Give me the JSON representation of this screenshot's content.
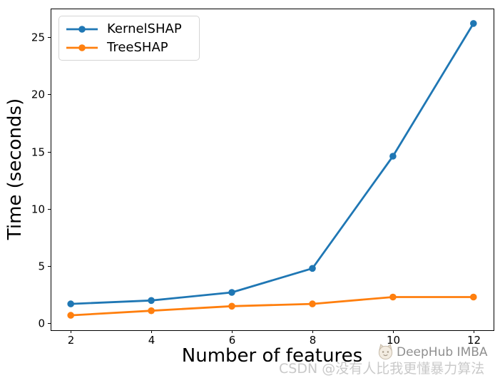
{
  "chart_data": {
    "type": "line",
    "title": "",
    "xlabel": "Number of features",
    "ylabel": "Time (seconds)",
    "x": [
      2,
      4,
      6,
      8,
      10,
      12
    ],
    "series": [
      {
        "name": "KernelSHAP",
        "color": "#1f77b4",
        "values": [
          1.7,
          2.0,
          2.7,
          4.8,
          14.6,
          26.2
        ]
      },
      {
        "name": "TreeSHAP",
        "color": "#ff7f0e",
        "values": [
          0.7,
          1.1,
          1.5,
          1.7,
          2.3,
          2.3
        ]
      }
    ],
    "xlim": [
      1.5,
      12.5
    ],
    "ylim": [
      -0.6,
      27.5
    ],
    "xticks": [
      2,
      4,
      6,
      8,
      10,
      12
    ],
    "yticks": [
      0,
      5,
      10,
      15,
      20,
      25
    ],
    "grid": false,
    "legend_position": "upper left",
    "axis_color": "#000000"
  },
  "watermarks": {
    "deephub": "DeepHub IMBA",
    "csdn": "CSDN @没有人比我更懂暴力算法"
  }
}
